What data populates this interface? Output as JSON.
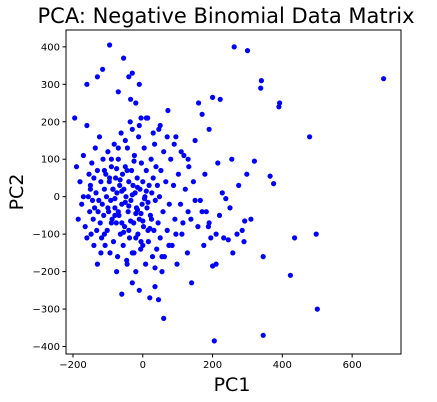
{
  "chart_data": {
    "type": "scatter",
    "title": "PCA: Negative Binomial Data Matrix",
    "xlabel": "PC1",
    "ylabel": "PC2",
    "xlim": [
      -220,
      740
    ],
    "ylim": [
      -420,
      445
    ],
    "xticks": [
      -200,
      0,
      200,
      400,
      600
    ],
    "yticks": [
      -400,
      -300,
      -200,
      -100,
      0,
      100,
      200,
      300,
      400
    ],
    "xtick_labels": [
      "−200",
      "0",
      "200",
      "400",
      "600"
    ],
    "ytick_labels": [
      "−400",
      "−300",
      "−200",
      "−100",
      "0",
      "100",
      "200",
      "300",
      "400"
    ],
    "grid": false,
    "marker_color": "#0000ff",
    "points": [
      [
        690,
        315
      ],
      [
        500,
        -300
      ],
      [
        497,
        -100
      ],
      [
        478,
        160
      ],
      [
        435,
        -110
      ],
      [
        423,
        -210
      ],
      [
        392,
        250
      ],
      [
        390,
        240
      ],
      [
        375,
        35
      ],
      [
        365,
        55
      ],
      [
        345,
        -370
      ],
      [
        345,
        -160
      ],
      [
        340,
        310
      ],
      [
        338,
        290
      ],
      [
        320,
        95
      ],
      [
        310,
        -60
      ],
      [
        300,
        390
      ],
      [
        298,
        60
      ],
      [
        292,
        -65
      ],
      [
        290,
        -120
      ],
      [
        285,
        -90
      ],
      [
        275,
        30
      ],
      [
        270,
        -100
      ],
      [
        262,
        400
      ],
      [
        258,
        -150
      ],
      [
        255,
        100
      ],
      [
        250,
        -30
      ],
      [
        245,
        -115
      ],
      [
        238,
        -5
      ],
      [
        232,
        -110
      ],
      [
        228,
        10
      ],
      [
        222,
        260
      ],
      [
        220,
        -50
      ],
      [
        215,
        90
      ],
      [
        210,
        -180
      ],
      [
        205,
        -385
      ],
      [
        200,
        -185
      ],
      [
        200,
        265
      ],
      [
        195,
        -110
      ],
      [
        190,
        180
      ],
      [
        188,
        -80
      ],
      [
        182,
        -40
      ],
      [
        178,
        60
      ],
      [
        175,
        -130
      ],
      [
        170,
        220
      ],
      [
        165,
        -10
      ],
      [
        160,
        250
      ],
      [
        158,
        -80
      ],
      [
        150,
        150
      ],
      [
        145,
        40
      ],
      [
        140,
        -230
      ],
      [
        138,
        -60
      ],
      [
        132,
        80
      ],
      [
        128,
        -150
      ],
      [
        122,
        20
      ],
      [
        118,
        110
      ],
      [
        112,
        -100
      ],
      [
        108,
        -20
      ],
      [
        102,
        60
      ],
      [
        98,
        -180
      ],
      [
        95,
        160
      ],
      [
        92,
        -60
      ],
      [
        88,
        30
      ],
      [
        84,
        -130
      ],
      [
        80,
        100
      ],
      [
        76,
        -20
      ],
      [
        72,
        230
      ],
      [
        70,
        -90
      ],
      [
        66,
        40
      ],
      [
        62,
        -160
      ],
      [
        60,
        120
      ],
      [
        58,
        -40
      ],
      [
        55,
        -200
      ],
      [
        52,
        70
      ],
      [
        50,
        -110
      ],
      [
        48,
        0
      ],
      [
        46,
        180
      ],
      [
        44,
        -70
      ],
      [
        42,
        30
      ],
      [
        40,
        -140
      ],
      [
        38,
        80
      ],
      [
        36,
        -10
      ],
      [
        34,
        140
      ],
      [
        32,
        -90
      ],
      [
        30,
        50
      ],
      [
        28,
        -160
      ],
      [
        26,
        10
      ],
      [
        24,
        100
      ],
      [
        22,
        -50
      ],
      [
        20,
        -270
      ],
      [
        18,
        30
      ],
      [
        16,
        -120
      ],
      [
        14,
        210
      ],
      [
        12,
        -30
      ],
      [
        10,
        70
      ],
      [
        8,
        -180
      ],
      [
        6,
        0
      ],
      [
        4,
        130
      ],
      [
        2,
        -80
      ],
      [
        0,
        40
      ],
      [
        -2,
        -20
      ],
      [
        -4,
        90
      ],
      [
        -6,
        -140
      ],
      [
        -8,
        20
      ],
      [
        -10,
        -60
      ],
      [
        -12,
        160
      ],
      [
        -14,
        -100
      ],
      [
        -16,
        50
      ],
      [
        -18,
        -30
      ],
      [
        -20,
        -200
      ],
      [
        -22,
        10
      ],
      [
        -24,
        110
      ],
      [
        -26,
        -70
      ],
      [
        -28,
        30
      ],
      [
        -30,
        -150
      ],
      [
        -32,
        70
      ],
      [
        -34,
        -10
      ],
      [
        -36,
        200
      ],
      [
        -38,
        -110
      ],
      [
        -40,
        40
      ],
      [
        -42,
        -40
      ],
      [
        -44,
        130
      ],
      [
        -46,
        -170
      ],
      [
        -48,
        0
      ],
      [
        -50,
        80
      ],
      [
        -52,
        -80
      ],
      [
        -54,
        20
      ],
      [
        -56,
        -130
      ],
      [
        -58,
        60
      ],
      [
        -60,
        -20
      ],
      [
        -62,
        170
      ],
      [
        -64,
        -100
      ],
      [
        -66,
        30
      ],
      [
        -68,
        -50
      ],
      [
        -70,
        100
      ],
      [
        -72,
        -160
      ],
      [
        -74,
        10
      ],
      [
        -76,
        -70
      ],
      [
        -78,
        50
      ],
      [
        -80,
        -30
      ],
      [
        -82,
        140
      ],
      [
        -84,
        -120
      ],
      [
        -86,
        20
      ],
      [
        -88,
        -60
      ],
      [
        -90,
        80
      ],
      [
        -92,
        -10
      ],
      [
        -94,
        -150
      ],
      [
        -96,
        40
      ],
      [
        -98,
        -40
      ],
      [
        -100,
        120
      ],
      [
        -102,
        -90
      ],
      [
        -104,
        0
      ],
      [
        -106,
        60
      ],
      [
        -108,
        -130
      ],
      [
        -110,
        20
      ],
      [
        -112,
        -50
      ],
      [
        -114,
        100
      ],
      [
        -116,
        -20
      ],
      [
        -118,
        -110
      ],
      [
        -120,
        40
      ],
      [
        -122,
        -70
      ],
      [
        -124,
        160
      ],
      [
        -126,
        -10
      ],
      [
        -128,
        -40
      ],
      [
        -130,
        70
      ],
      [
        -132,
        -90
      ],
      [
        -134,
        10
      ],
      [
        -136,
        130
      ],
      [
        -138,
        -30
      ],
      [
        -140,
        50
      ],
      [
        -142,
        -60
      ],
      [
        -144,
        -10
      ],
      [
        -146,
        90
      ],
      [
        -148,
        -100
      ],
      [
        -150,
        20
      ],
      [
        -152,
        -40
      ],
      [
        -154,
        60
      ],
      [
        -156,
        0
      ],
      [
        -160,
        190
      ],
      [
        -165,
        -80
      ],
      [
        -170,
        110
      ],
      [
        -175,
        -20
      ],
      [
        -180,
        40
      ],
      [
        -185,
        -60
      ],
      [
        -190,
        80
      ],
      [
        -195,
        210
      ],
      [
        -160,
        300
      ],
      [
        -130,
        320
      ],
      [
        -115,
        340
      ],
      [
        -95,
        405
      ],
      [
        -70,
        280
      ],
      [
        -55,
        370
      ],
      [
        -40,
        320
      ],
      [
        -35,
        260
      ],
      [
        -30,
        330
      ],
      [
        -20,
        250
      ],
      [
        -10,
        300
      ],
      [
        -5,
        210
      ],
      [
        -60,
        -260
      ],
      [
        -30,
        -230
      ],
      [
        -10,
        -250
      ],
      [
        35,
        -240
      ],
      [
        45,
        -275
      ],
      [
        60,
        -325
      ],
      [
        -75,
        -200
      ],
      [
        -45,
        -180
      ],
      [
        -25,
        -150
      ],
      [
        -5,
        -120
      ],
      [
        15,
        -90
      ],
      [
        25,
        -60
      ],
      [
        -90,
        -70
      ],
      [
        -70,
        -40
      ],
      [
        -50,
        -15
      ],
      [
        -30,
        5
      ],
      [
        -15,
        25
      ],
      [
        5,
        -5
      ],
      [
        -85,
        20
      ],
      [
        -65,
        45
      ],
      [
        -45,
        70
      ],
      [
        -25,
        95
      ],
      [
        -5,
        -45
      ],
      [
        15,
        -15
      ],
      [
        -95,
        50
      ],
      [
        -75,
        75
      ],
      [
        -55,
        -95
      ],
      [
        -35,
        -65
      ],
      [
        -15,
        -35
      ],
      [
        10,
        15
      ],
      [
        -80,
        -5
      ],
      [
        -60,
        15
      ],
      [
        -40,
        -25
      ],
      [
        -20,
        -45
      ],
      [
        0,
        -65
      ],
      [
        20,
        -85
      ],
      [
        -100,
        -30
      ],
      [
        -80,
        -50
      ],
      [
        -60,
        -70
      ],
      [
        -40,
        -90
      ],
      [
        -20,
        -110
      ],
      [
        0,
        -130
      ],
      [
        -110,
        70
      ],
      [
        -90,
        100
      ],
      [
        -70,
        130
      ],
      [
        -50,
        150
      ],
      [
        -30,
        180
      ],
      [
        -10,
        190
      ],
      [
        10,
        210
      ],
      [
        30,
        170
      ],
      [
        50,
        190
      ],
      [
        70,
        160
      ],
      [
        90,
        140
      ],
      [
        110,
        120
      ],
      [
        130,
        100
      ],
      [
        150,
        -10
      ],
      [
        170,
        -40
      ],
      [
        190,
        -70
      ],
      [
        210,
        -100
      ],
      [
        130,
        -40
      ],
      [
        115,
        -70
      ],
      [
        95,
        -100
      ],
      [
        75,
        -130
      ],
      [
        55,
        -160
      ],
      [
        35,
        -190
      ],
      [
        -120,
        -150
      ],
      [
        -140,
        -130
      ],
      [
        -160,
        -110
      ],
      [
        -130,
        -180
      ],
      [
        -110,
        -100
      ],
      [
        -150,
        30
      ],
      [
        -170,
        0
      ]
    ]
  }
}
